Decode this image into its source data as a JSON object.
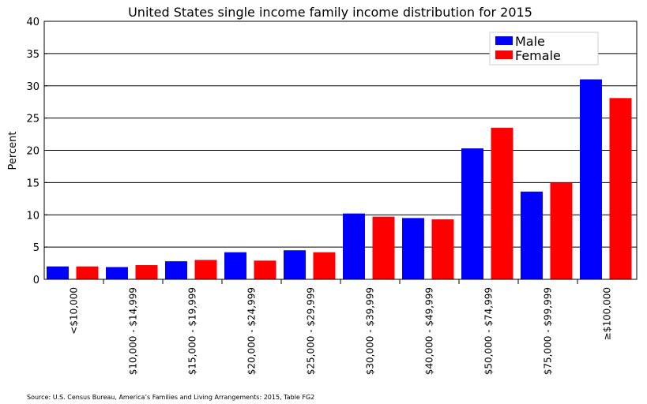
{
  "chart_data": {
    "type": "bar",
    "title": "United States single income family income distribution for 2015",
    "xlabel": "",
    "ylabel": "Percent",
    "ylim": [
      0,
      40
    ],
    "yticks": [
      0,
      5,
      10,
      15,
      20,
      25,
      30,
      35,
      40
    ],
    "grid": true,
    "legend_position": "top-right",
    "categories": [
      "<$10,000",
      "$10,000 - $14,999",
      "$15,000 - $19,999",
      "$20,000 - $24,999",
      "$25,000 - $29,999",
      "$30,000 - $39,999",
      "$40,000 - $49,999",
      "$50,000 - $74,999",
      "$75,000 - $99,999",
      "≥$100,000"
    ],
    "series": [
      {
        "name": "Male",
        "color": "#0000ff",
        "values": [
          2.0,
          1.9,
          2.8,
          4.2,
          4.5,
          10.2,
          9.5,
          20.3,
          13.6,
          31.0
        ]
      },
      {
        "name": "Female",
        "color": "#ff0000",
        "values": [
          2.0,
          2.2,
          3.0,
          2.9,
          4.2,
          9.7,
          9.3,
          23.5,
          15.0,
          28.1
        ]
      }
    ],
    "source": "Source: U.S. Census Bureau, America’s Families and Living Arrangements: 2015, Table FG2"
  }
}
